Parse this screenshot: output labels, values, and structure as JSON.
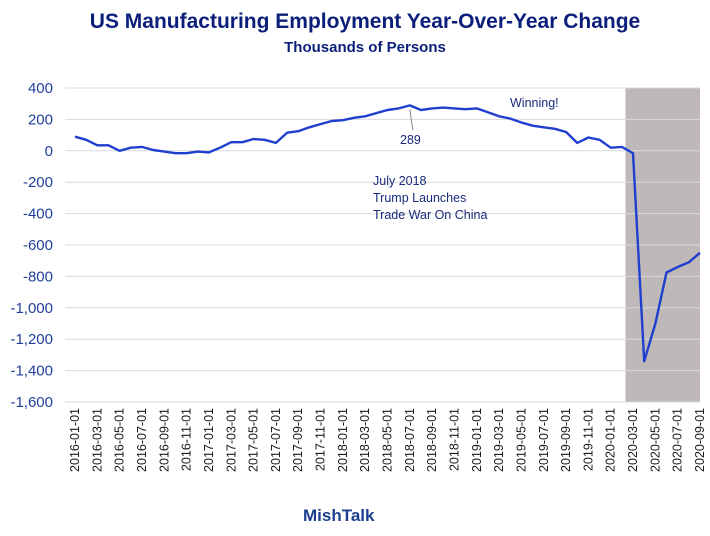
{
  "chart_data": {
    "type": "line",
    "title": "US Manufacturing Employment Year-Over-Year Change",
    "subtitle": "Thousands of Persons",
    "source": "MishTalk",
    "xlabel": "",
    "ylabel": "",
    "ylim": [
      -1600,
      400
    ],
    "yticks": [
      400,
      200,
      0,
      -200,
      -400,
      -600,
      -800,
      -1000,
      -1200,
      -1400,
      -1600
    ],
    "ytick_labels": [
      "400",
      "200",
      "0",
      "-200",
      "-400",
      "-600",
      "-800",
      "-1,000",
      "-1,200",
      "-1,400",
      "-1,600"
    ],
    "grid": true,
    "line_color": "#1f3fcf",
    "shade_color": "#bfb8b8",
    "shaded_region": {
      "start": "2020-03-01",
      "end": "2020-09-01"
    },
    "x": [
      "2016-01-01",
      "2016-02-01",
      "2016-03-01",
      "2016-04-01",
      "2016-05-01",
      "2016-06-01",
      "2016-07-01",
      "2016-08-01",
      "2016-09-01",
      "2016-10-01",
      "2016-11-01",
      "2016-12-01",
      "2017-01-01",
      "2017-02-01",
      "2017-03-01",
      "2017-04-01",
      "2017-05-01",
      "2017-06-01",
      "2017-07-01",
      "2017-08-01",
      "2017-09-01",
      "2017-10-01",
      "2017-11-01",
      "2017-12-01",
      "2018-01-01",
      "2018-02-01",
      "2018-03-01",
      "2018-04-01",
      "2018-05-01",
      "2018-06-01",
      "2018-07-01",
      "2018-08-01",
      "2018-09-01",
      "2018-10-01",
      "2018-11-01",
      "2018-12-01",
      "2019-01-01",
      "2019-02-01",
      "2019-03-01",
      "2019-04-01",
      "2019-05-01",
      "2019-06-01",
      "2019-07-01",
      "2019-08-01",
      "2019-09-01",
      "2019-10-01",
      "2019-11-01",
      "2019-12-01",
      "2020-01-01",
      "2020-02-01",
      "2020-03-01",
      "2020-04-01",
      "2020-05-01",
      "2020-06-01",
      "2020-07-01",
      "2020-08-01",
      "2020-09-01"
    ],
    "xtick_labels": [
      "2016-01-01",
      "2016-03-01",
      "2016-05-01",
      "2016-07-01",
      "2016-09-01",
      "2016-11-01",
      "2017-01-01",
      "2017-03-01",
      "2017-05-01",
      "2017-07-01",
      "2017-09-01",
      "2017-11-01",
      "2018-01-01",
      "2018-03-01",
      "2018-05-01",
      "2018-07-01",
      "2018-09-01",
      "2018-11-01",
      "2019-01-01",
      "2019-03-01",
      "2019-05-01",
      "2019-07-01",
      "2019-09-01",
      "2019-11-01",
      "2020-01-01",
      "2020-03-01",
      "2020-05-01",
      "2020-07-01",
      "2020-09-01"
    ],
    "series": [
      {
        "name": "US Manufacturing Employment YoY Change",
        "values": [
          90,
          70,
          35,
          35,
          0,
          20,
          25,
          5,
          -5,
          -15,
          -15,
          -5,
          -10,
          20,
          55,
          55,
          75,
          70,
          50,
          115,
          125,
          150,
          170,
          190,
          195,
          210,
          220,
          240,
          260,
          270,
          289,
          260,
          270,
          275,
          270,
          265,
          270,
          245,
          220,
          205,
          180,
          160,
          150,
          140,
          120,
          50,
          85,
          70,
          20,
          25,
          -15,
          -1340,
          -1100,
          -775,
          -740,
          -710,
          -650
        ]
      }
    ],
    "annotations": [
      {
        "text": "289",
        "x": "2018-07-01",
        "y": 289
      },
      {
        "text": "Winning!"
      },
      {
        "lines": [
          "July 2018",
          "Trump Launches",
          "Trade War On China"
        ]
      }
    ]
  }
}
